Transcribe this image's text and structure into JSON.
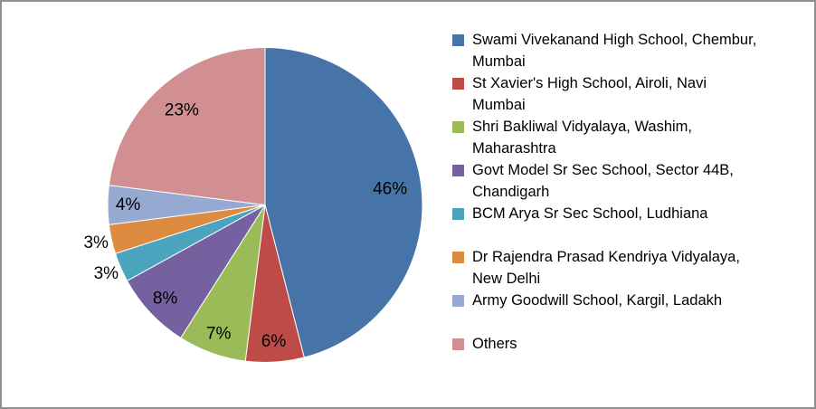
{
  "frame": {
    "background": "#ffffff",
    "border_color": "#8f8f8f"
  },
  "chart_data": {
    "type": "pie",
    "title": "",
    "unit": "percent",
    "start_angle_deg": 0,
    "direction": "clockwise",
    "legend_position": "right",
    "data_label_color": "#000000",
    "slices": [
      {
        "label": "Swami Vivekanand High School, Chembur, Mumbai",
        "label_lines": [
          "Swami Vivekanand High School, Chembur,",
          "Mumbai"
        ],
        "value": 46,
        "display": "46%",
        "color": "#4674A8"
      },
      {
        "label": "St Xavier's High School, Airoli, Navi Mumbai",
        "label_lines": [
          "St Xavier's High School, Airoli, Navi",
          "Mumbai"
        ],
        "value": 6,
        "display": "6%",
        "color": "#BE4B48"
      },
      {
        "label": "Shri Bakliwal Vidyalaya, Washim, Maharashtra",
        "label_lines": [
          "Shri Bakliwal Vidyalaya, Washim,",
          "Maharashtra"
        ],
        "value": 7,
        "display": "7%",
        "color": "#9BBB59"
      },
      {
        "label": "Govt Model Sr Sec School, Sector 44B, Chandigarh",
        "label_lines": [
          "Govt Model Sr Sec School, Sector 44B,",
          "Chandigarh"
        ],
        "value": 8,
        "display": "8%",
        "color": "#7560A0"
      },
      {
        "label": "BCM Arya Sr Sec School, Ludhiana",
        "label_lines": [
          "BCM Arya Sr Sec School, Ludhiana"
        ],
        "value": 3,
        "display": "3%",
        "color": "#4AA4BE"
      },
      {
        "label": "Dr Rajendra Prasad Kendriya Vidyalaya, New Delhi",
        "label_lines": [
          "Dr Rajendra Prasad Kendriya Vidyalaya,",
          "New Delhi"
        ],
        "value": 3,
        "display": "3%",
        "color": "#DD8B41"
      },
      {
        "label": "Army Goodwill School, Kargil, Ladakh",
        "label_lines": [
          "Army Goodwill School, Kargil, Ladakh"
        ],
        "value": 4,
        "display": "4%",
        "color": "#95A9D1"
      },
      {
        "label": "Others",
        "label_lines": [
          "Others"
        ],
        "value": 23,
        "display": "23%",
        "color": "#D28F91"
      }
    ]
  }
}
